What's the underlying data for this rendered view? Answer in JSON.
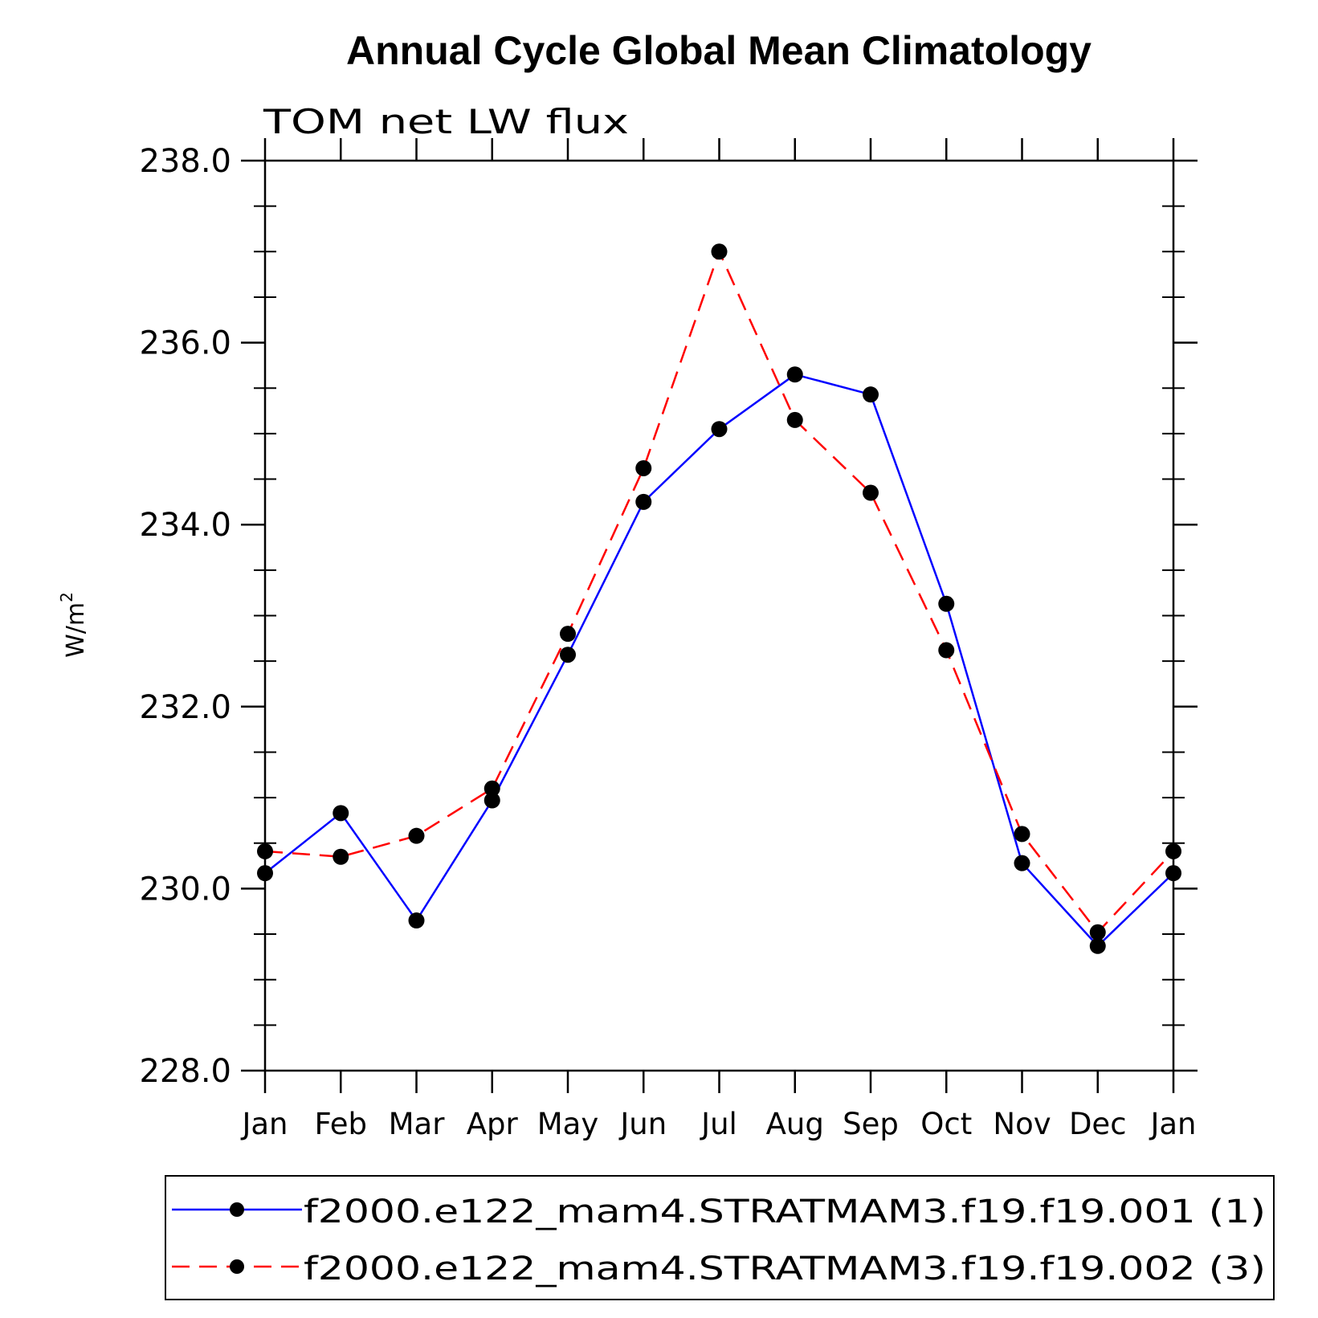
{
  "chart_data": {
    "type": "line",
    "title": "Annual Cycle Global Mean Climatology",
    "subtitle": "TOM net LW flux",
    "xlabel": "",
    "ylabel": "W/m",
    "ylabel_superscript": "2",
    "categories": [
      "Jan",
      "Feb",
      "Mar",
      "Apr",
      "May",
      "Jun",
      "Jul",
      "Aug",
      "Sep",
      "Oct",
      "Nov",
      "Dec",
      "Jan"
    ],
    "ylim": [
      228.0,
      238.0
    ],
    "ymajor_ticks": [
      228.0,
      230.0,
      232.0,
      234.0,
      236.0,
      238.0
    ],
    "ytick_labels": [
      "228.0",
      "230.0",
      "232.0",
      "234.0",
      "236.0",
      "238.0"
    ],
    "yminor_step": 0.5,
    "grid": false,
    "legend_position": "bottom",
    "series": [
      {
        "name": "f2000.e122_mam4.STRATMAM3.f19.f19.001 (1)",
        "color": "#0000ff",
        "line_style": "solid",
        "marker": "filled-circle",
        "values": [
          230.17,
          230.83,
          229.65,
          230.97,
          232.57,
          234.25,
          235.05,
          235.65,
          235.43,
          233.13,
          230.28,
          229.37,
          230.17
        ]
      },
      {
        "name": "f2000.e122_mam4.STRATMAM3.f19.f19.002 (3)",
        "color": "#ff0000",
        "line_style": "dashed",
        "marker": "filled-circle",
        "values": [
          230.41,
          230.35,
          230.58,
          231.1,
          232.8,
          234.62,
          237.0,
          235.15,
          234.35,
          232.62,
          230.6,
          229.52,
          230.41
        ]
      }
    ]
  }
}
